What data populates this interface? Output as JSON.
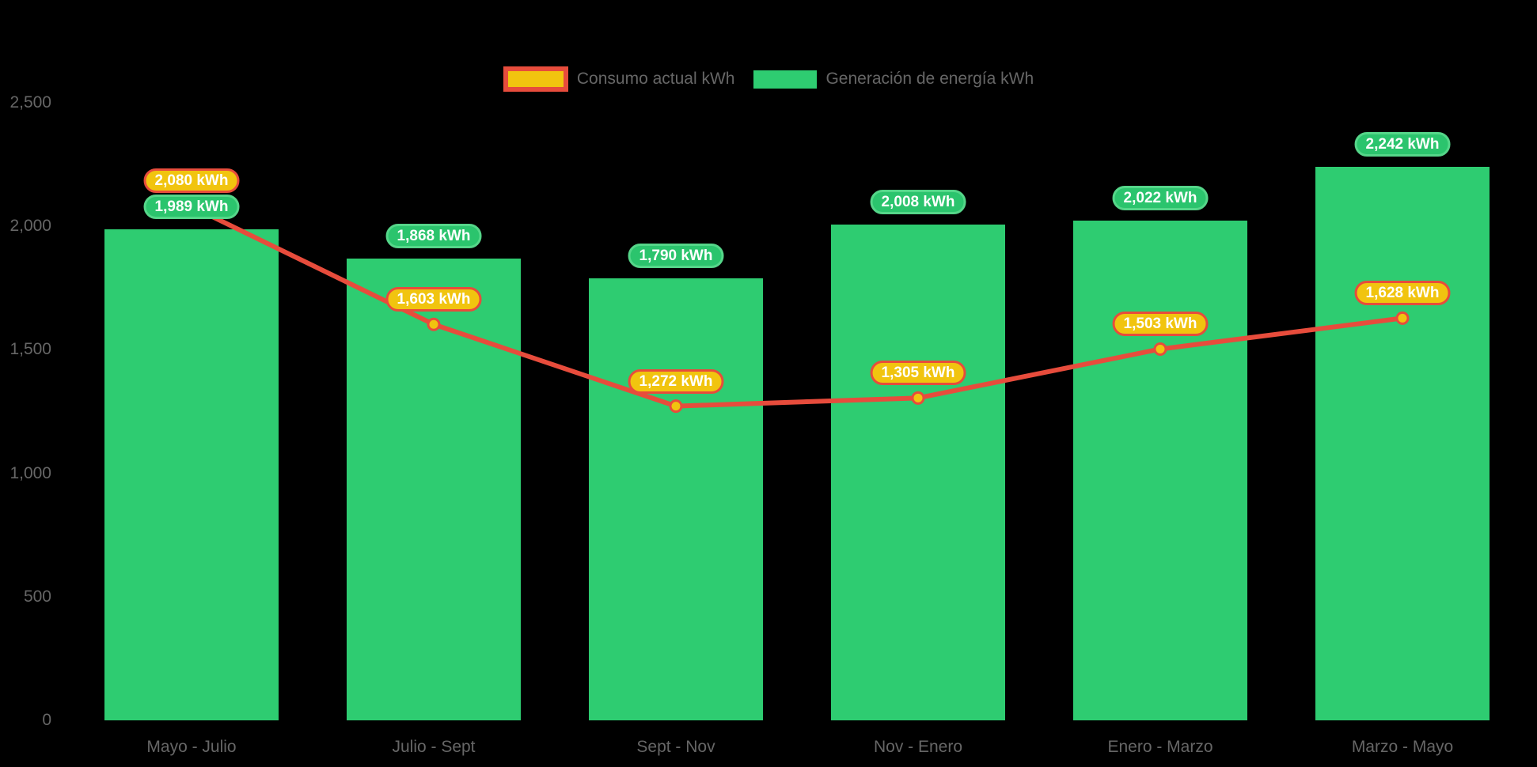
{
  "background_color": "#000000",
  "chart_data": {
    "type": "bar",
    "title": "",
    "categories": [
      "Mayo - Julio",
      "Julio - Sept",
      "Sept - Nov",
      "Nov - Enero",
      "Enero - Marzo",
      "Marzo - Mayo"
    ],
    "series": [
      {
        "name": "Consumo actual kWh",
        "type": "line",
        "values": [
          2080,
          1603,
          1272,
          1305,
          1503,
          1628
        ],
        "line_color": "#E74C3C",
        "marker_fill": "#F1C40F",
        "label_bg": "#F1C40F",
        "label_border": "#E74C3C",
        "label_text_color": "#FFFFFF"
      },
      {
        "name": "Generación de energía kWh",
        "type": "bar",
        "values": [
          1989,
          1868,
          1790,
          2008,
          2022,
          2242
        ],
        "bar_color": "#2ECC71",
        "label_bg": "#2BC46D",
        "label_border": "#55D689",
        "label_text_color": "#FFFFFF"
      }
    ],
    "value_suffix": " kWh",
    "y_ticks": [
      {
        "value": 0,
        "label": "0"
      },
      {
        "value": 500,
        "label": "500"
      },
      {
        "value": 1000,
        "label": "1,000"
      },
      {
        "value": 1500,
        "label": "1,500"
      },
      {
        "value": 2000,
        "label": "2,000"
      },
      {
        "value": 2500,
        "label": "2,500"
      }
    ],
    "ylim": [
      0,
      2500
    ],
    "grid": false,
    "legend_position": "top",
    "axis_text_color": "#666666",
    "legend_text_color": "#666666"
  }
}
